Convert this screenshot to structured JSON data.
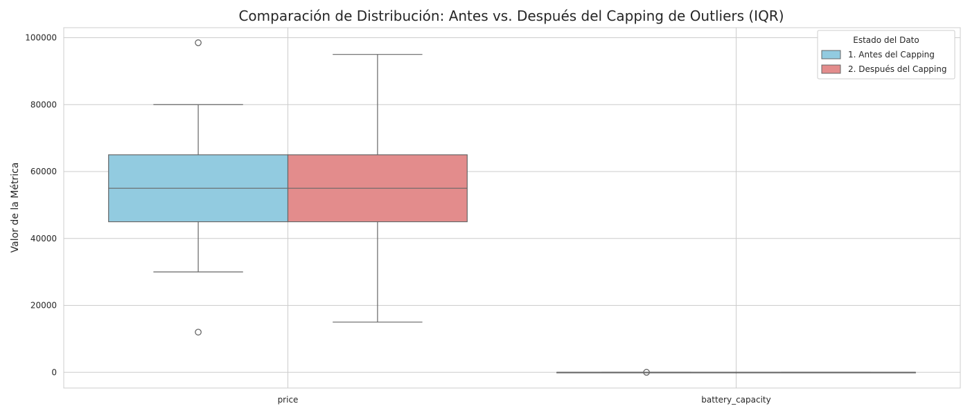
{
  "chart_data": {
    "type": "box",
    "title": "Comparación de Distribución: Antes vs. Después del Capping de Outliers (IQR)",
    "xlabel": "",
    "ylabel": "Valor de la Métrica",
    "ylim": [
      -4700,
      103000
    ],
    "yticks": [
      0,
      20000,
      40000,
      60000,
      80000,
      100000
    ],
    "grid": true,
    "legend_position": "top-right",
    "legend_title": "Estado del Dato",
    "categories": [
      "price",
      "battery_capacity"
    ],
    "series": [
      {
        "name": "1. Antes del Capping",
        "color": "#92cbe0",
        "boxes": [
          {
            "whisker_low": 30000,
            "q1": 45000,
            "median": 55000,
            "q3": 65000,
            "whisker_high": 80000,
            "outliers": [
              98500,
              12000
            ]
          },
          {
            "whisker_low": 0,
            "q1": 0,
            "median": 0,
            "q3": 0,
            "whisker_high": 0,
            "outliers": [
              0
            ]
          }
        ]
      },
      {
        "name": "2. Después del Capping",
        "color": "#e38c8c",
        "boxes": [
          {
            "whisker_low": 15000,
            "q1": 45000,
            "median": 55000,
            "q3": 65000,
            "whisker_high": 95000,
            "outliers": []
          },
          {
            "whisker_low": 0,
            "q1": 0,
            "median": 0,
            "q3": 0,
            "whisker_high": 0,
            "outliers": []
          }
        ]
      }
    ]
  }
}
